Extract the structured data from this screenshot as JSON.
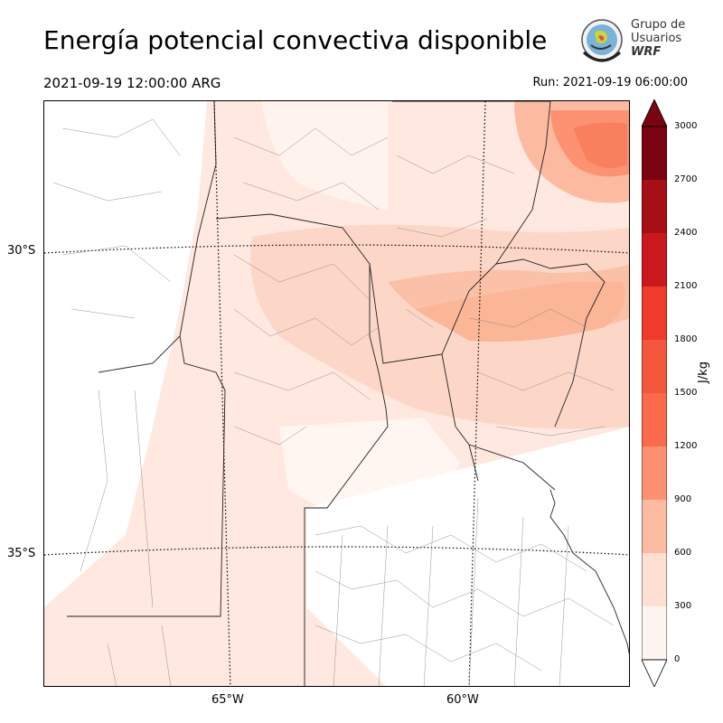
{
  "header": {
    "title": "Energía potencial convectiva disponible",
    "valid_time": "2021-09-19 12:00:00 ARG",
    "run_time": "Run: 2021-09-19 06:00:00"
  },
  "logo": {
    "line1": "Grupo de",
    "line2": "Usuarios",
    "line3": "WRF"
  },
  "map": {
    "lat_labels": [
      "30°S",
      "35°S"
    ],
    "lon_labels": [
      "65°W",
      "60°W"
    ]
  },
  "colorbar": {
    "unit": "J/kg",
    "levels": [
      "0",
      "300",
      "600",
      "900",
      "1200",
      "1500",
      "1800",
      "2100",
      "2400",
      "2700",
      "3000"
    ],
    "colors": [
      "#fff5f0",
      "#fee0d2",
      "#fcbba1",
      "#fc9272",
      "#fb6a4a",
      "#f4583c",
      "#ef3b2c",
      "#cb181d",
      "#a50f15",
      "#7a0510"
    ]
  }
}
